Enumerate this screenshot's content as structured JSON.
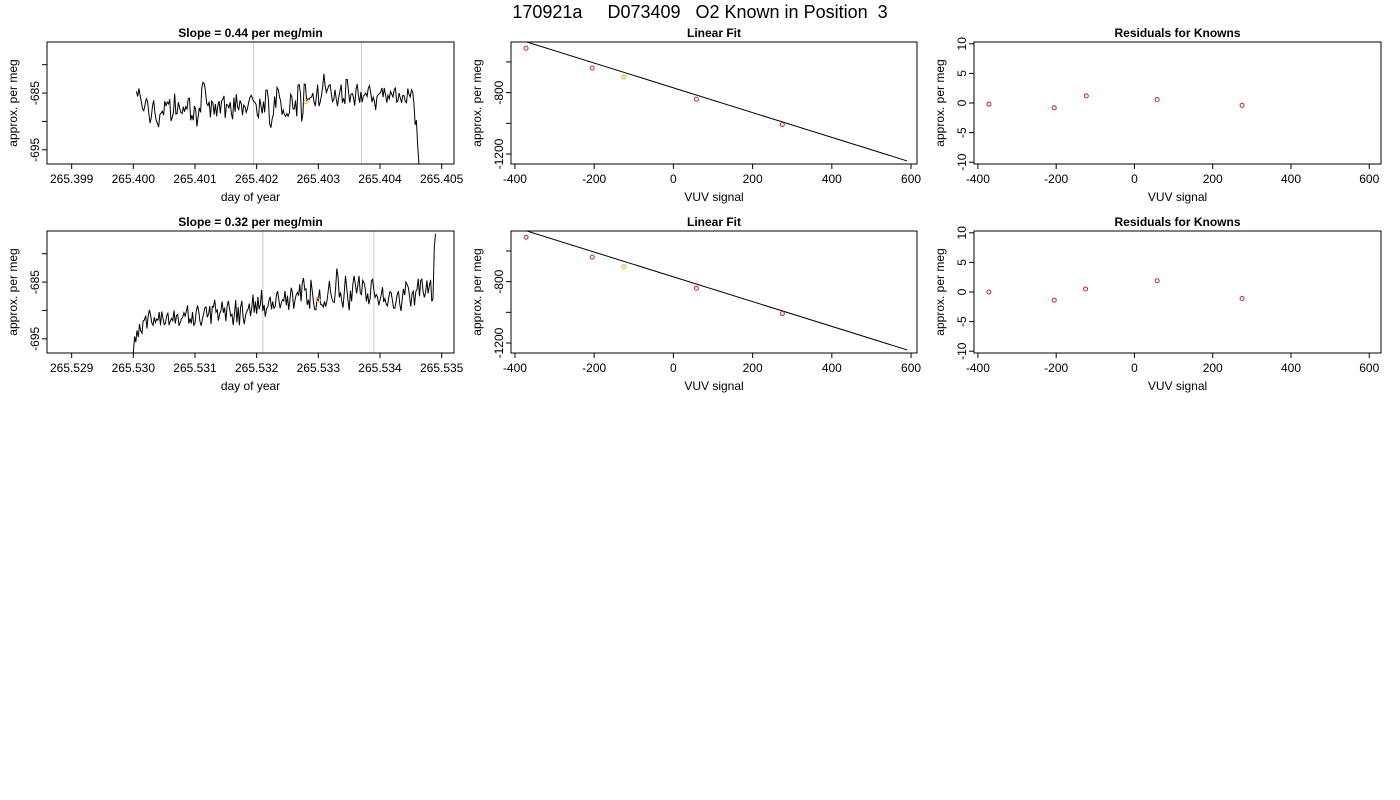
{
  "figure": {
    "title": "170921a     D073409   O2 Known in Position  3"
  },
  "chart_data": [
    {
      "panel": "time-series-row1",
      "type": "line",
      "title": "Slope =  0.44  per meg/min",
      "xlabel": "day of year",
      "ylabel": "approx. per meg",
      "xlim": [
        265.3986,
        265.4052
      ],
      "ylim": [
        -697.5,
        -676.0
      ],
      "xticks": [
        265.399,
        265.4,
        265.401,
        265.402,
        265.403,
        265.404,
        265.405
      ],
      "yticks": [
        -695,
        -685
      ],
      "ytick_labels": [
        "-695",
        "-685"
      ],
      "extra_ytick_marks": [
        -680,
        -690
      ],
      "tick_decimals": 3,
      "vlines": [
        265.40195,
        265.4037
      ],
      "line_color": "#000000",
      "vline_color": "#cccccc",
      "series": [
        {
          "values_start": 265.40005,
          "values_step": 2e-05,
          "values": [
            -684.7,
            -685.6,
            -684.2,
            -685.4,
            -686.6,
            -687.8,
            -688.1,
            -687.0,
            -686.0,
            -686.4,
            -688.5,
            -690.3,
            -689.4,
            -687.3,
            -686.3,
            -688.4,
            -689.8,
            -690.3,
            -691.0,
            -688.8,
            -688.5,
            -688.2,
            -688.9,
            -686.4,
            -687.2,
            -686.6,
            -686.9,
            -686.1,
            -689.9,
            -689.3,
            -688.5,
            -685.1,
            -688.7,
            -688.6,
            -686.6,
            -687.6,
            -688.4,
            -688.6,
            -687.4,
            -688.3,
            -687.4,
            -687.8,
            -686.0,
            -685.9,
            -689.8,
            -688.9,
            -689.8,
            -687.3,
            -687.8,
            -690.9,
            -689.2,
            -687.6,
            -688.4,
            -684.1,
            -683.1,
            -683.4,
            -684.7,
            -686.8,
            -687.2,
            -686.5,
            -689.3,
            -686.4,
            -686.7,
            -688.8,
            -686.9,
            -689.1,
            -687.3,
            -686.4,
            -688.6,
            -686.4,
            -686.1,
            -685.5,
            -689.4,
            -687.0,
            -687.1,
            -687.6,
            -686.6,
            -688.6,
            -689.6,
            -685.8,
            -688.3,
            -685.2,
            -687.5,
            -687.9,
            -686.3,
            -686.9,
            -688.9,
            -687.1,
            -687.4,
            -688.4,
            -687.8,
            -686.6,
            -685.8,
            -685.4,
            -685.9,
            -686.5,
            -686.6,
            -687.0,
            -688.9,
            -689.3,
            -686.0,
            -687.3,
            -688.6,
            -686.5,
            -688.4,
            -684.5,
            -684.5,
            -686.1,
            -690.4,
            -691.1,
            -689.6,
            -688.8,
            -685.6,
            -687.6,
            -684.0,
            -684.4,
            -685.7,
            -686.4,
            -688.8,
            -688.0,
            -688.8,
            -689.1,
            -688.6,
            -689.1,
            -688.5,
            -685.2,
            -685.6,
            -687.8,
            -687.8,
            -686.3,
            -689.1,
            -683.6,
            -683.5,
            -685.1,
            -690.0,
            -688.7,
            -683.4,
            -683.5,
            -686.3,
            -686.0,
            -686.1,
            -685.8,
            -685.7,
            -685.0,
            -686.5,
            -687.3,
            -685.4,
            -683.5,
            -687.3,
            -686.6,
            -685.5,
            -683.9,
            -681.6,
            -683.7,
            -684.9,
            -684.3,
            -683.7,
            -683.5,
            -685.1,
            -686.5,
            -686.1,
            -684.4,
            -686.0,
            -687.3,
            -685.8,
            -684.7,
            -683.5,
            -686.7,
            -685.9,
            -686.9,
            -682.6,
            -682.6,
            -684.9,
            -686.7,
            -685.2,
            -685.1,
            -685.8,
            -687.2,
            -684.4,
            -683.4,
            -685.4,
            -686.7,
            -684.8,
            -686.6,
            -685.5,
            -685.3,
            -685.0,
            -685.6,
            -684.1,
            -683.7,
            -685.0,
            -686.6,
            -685.7,
            -686.5,
            -688.0,
            -685.7,
            -685.3,
            -685.1,
            -684.9,
            -684.1,
            -685.7,
            -684.1,
            -685.4,
            -686.7,
            -685.4,
            -686.0,
            -684.7,
            -685.2,
            -685.7,
            -684.5,
            -684.0,
            -686.6,
            -686.4,
            -685.0,
            -685.9,
            -686.7,
            -685.4,
            -685.5,
            -686.5,
            -686.7,
            -684.2,
            -685.2,
            -685.7,
            -684.4,
            -684.8,
            -686.8,
            -690.6,
            -689.8,
            -693.9,
            -697.5
          ]
        }
      ],
      "markers": [
        {
          "x": 265.4028,
          "y": -686.5,
          "color": "#f5a623"
        }
      ]
    },
    {
      "panel": "linear-fit-row1",
      "type": "scatter",
      "title": "Linear Fit",
      "xlabel": "VUV signal",
      "ylabel": "approx. per meg",
      "xlim": [
        -410,
        615
      ],
      "ylim": [
        -1265,
        -470
      ],
      "xticks": [
        -400,
        -200,
        0,
        200,
        400,
        600
      ],
      "yticks": [
        -1200,
        -800
      ],
      "ytick_labels": [
        "-1200",
        "-800"
      ],
      "extra_ytick_marks": [
        -1000,
        -600
      ],
      "tick_decimals": 0,
      "fit_line": {
        "x1": -380,
        "y1": -462,
        "x2": 590,
        "y2": -1245,
        "color": "#000000"
      },
      "series": [
        {
          "points": [
            [
              -372,
              -511
            ],
            [
              -205,
              -640
            ],
            [
              -125,
              -698
            ],
            [
              58,
              -843
            ],
            [
              275,
              -1008
            ]
          ],
          "colors": [
            "#cc2222",
            "#cc2222",
            "#f5a623",
            "#cc2222",
            "#cc2222"
          ]
        }
      ]
    },
    {
      "panel": "residuals-row1",
      "type": "scatter",
      "title": "Residuals for Knowns",
      "xlabel": "VUV signal",
      "ylabel": "approx. per meg",
      "xlim": [
        -410,
        630
      ],
      "ylim": [
        -10.3,
        10.3
      ],
      "xticks": [
        -400,
        -200,
        0,
        200,
        400,
        600
      ],
      "yticks": [
        -10,
        -5,
        0,
        5,
        10
      ],
      "ytick_labels": [
        "-10",
        "-5",
        "0",
        "5",
        "10"
      ],
      "extra_ytick_marks": [],
      "tick_decimals": 0,
      "series": [
        {
          "points": [
            [
              -372,
              -0.2
            ],
            [
              -205,
              -0.8
            ],
            [
              -123,
              1.2
            ],
            [
              58,
              0.6
            ],
            [
              275,
              -0.4
            ]
          ],
          "colors": [
            "#cc2222",
            "#cc2222",
            "#cc2222",
            "#cc2222",
            "#cc2222"
          ]
        }
      ]
    },
    {
      "panel": "time-series-row2",
      "type": "line",
      "title": "Slope =  0.32  per meg/min",
      "xlabel": "day of year",
      "ylabel": "approx. per meg",
      "xlim": [
        265.5286,
        265.5352
      ],
      "ylim": [
        -697.5,
        -676.0
      ],
      "xticks": [
        265.529,
        265.53,
        265.531,
        265.532,
        265.533,
        265.534,
        265.535
      ],
      "yticks": [
        -695,
        -685
      ],
      "ytick_labels": [
        "-695",
        "-685"
      ],
      "extra_ytick_marks": [
        -680,
        -690
      ],
      "tick_decimals": 3,
      "vlines": [
        265.5321,
        265.5339
      ],
      "line_color": "#000000",
      "vline_color": "#cccccc",
      "series": [
        {
          "values_start": 265.53,
          "values_step": 2e-05,
          "values": [
            -697.5,
            -694.6,
            -695.6,
            -693.5,
            -694.7,
            -692.4,
            -693.6,
            -694.0,
            -691.8,
            -691.7,
            -690.9,
            -693.2,
            -691.1,
            -689.9,
            -690.8,
            -692.2,
            -692.6,
            -691.2,
            -692.1,
            -691.5,
            -691.7,
            -690.3,
            -692.6,
            -690.2,
            -691.3,
            -692.5,
            -692.3,
            -691.0,
            -690.4,
            -692.6,
            -691.9,
            -691.4,
            -691.8,
            -690.0,
            -692.3,
            -690.9,
            -690.7,
            -692.7,
            -692.1,
            -691.5,
            -691.2,
            -690.4,
            -691.0,
            -690.1,
            -689.1,
            -692.3,
            -691.4,
            -692.3,
            -690.3,
            -692.6,
            -692.3,
            -690.2,
            -689.1,
            -690.1,
            -691.9,
            -692.7,
            -691.5,
            -690.6,
            -689.5,
            -689.4,
            -691.2,
            -690.6,
            -689.2,
            -692.4,
            -689.3,
            -689.4,
            -688.1,
            -690.3,
            -689.9,
            -691.8,
            -690.6,
            -690.1,
            -688.4,
            -690.4,
            -689.5,
            -691.9,
            -689.3,
            -688.3,
            -689.6,
            -691.0,
            -690.7,
            -692.6,
            -690.5,
            -688.2,
            -692.1,
            -689.4,
            -692.6,
            -689.4,
            -688.3,
            -691.2,
            -692.4,
            -690.8,
            -690.2,
            -689.8,
            -688.8,
            -691.0,
            -689.7,
            -687.2,
            -690.4,
            -688.4,
            -690.6,
            -687.6,
            -689.8,
            -688.9,
            -686.4,
            -690.1,
            -689.0,
            -691.1,
            -689.7,
            -689.4,
            -688.2,
            -687.6,
            -689.8,
            -688.4,
            -689.6,
            -689.3,
            -687.3,
            -686.6,
            -688.2,
            -689.6,
            -688.7,
            -688.1,
            -688.3,
            -686.6,
            -689.1,
            -687.4,
            -689.9,
            -688.0,
            -686.0,
            -686.8,
            -689.7,
            -688.3,
            -687.3,
            -686.8,
            -687.4,
            -685.4,
            -688.4,
            -685.1,
            -684.3,
            -686.4,
            -686.2,
            -689.0,
            -688.1,
            -689.7,
            -684.6,
            -686.5,
            -688.4,
            -689.8,
            -689.9,
            -687.8,
            -688.2,
            -686.3,
            -689.0,
            -689.0,
            -689.4,
            -688.4,
            -689.3,
            -688.3,
            -686.6,
            -684.8,
            -686.9,
            -687.9,
            -688.5,
            -688.6,
            -686.1,
            -682.6,
            -684.2,
            -687.7,
            -686.8,
            -688.4,
            -689.5,
            -687.0,
            -683.9,
            -686.0,
            -688.1,
            -690.0,
            -686.5,
            -688.4,
            -685.3,
            -683.9,
            -685.3,
            -687.0,
            -685.6,
            -683.9,
            -687.0,
            -687.2,
            -684.7,
            -685.1,
            -686.1,
            -688.4,
            -687.0,
            -688.9,
            -687.9,
            -684.8,
            -684.5,
            -686.3,
            -687.7,
            -687.2,
            -687.6,
            -689.1,
            -688.2,
            -687.3,
            -685.9,
            -688.5,
            -687.9,
            -688.9,
            -689.2,
            -687.9,
            -686.7,
            -686.8,
            -688.1,
            -689.6,
            -689.6,
            -688.5,
            -687.1,
            -686.6,
            -688.8,
            -690.1,
            -688.0,
            -686.2,
            -687.3,
            -685.0,
            -685.4,
            -686.0,
            -687.6,
            -689.3,
            -687.0,
            -686.6,
            -689.1,
            -686.7,
            -686.3,
            -684.4,
            -687.5,
            -684.7,
            -684.5,
            -686.8,
            -687.7,
            -686.8,
            -684.7,
            -687.0,
            -685.7,
            -684.6,
            -688.4,
            -687.9,
            -678.9,
            -676.5
          ]
        }
      ],
      "markers": [
        {
          "x": 265.533,
          "y": -688.2,
          "color": "#f5a623"
        }
      ]
    },
    {
      "panel": "linear-fit-row2",
      "type": "scatter",
      "title": "Linear Fit",
      "xlabel": "VUV signal",
      "ylabel": "approx. per meg",
      "xlim": [
        -410,
        615
      ],
      "ylim": [
        -1265,
        -470
      ],
      "xticks": [
        -400,
        -200,
        0,
        200,
        400,
        600
      ],
      "yticks": [
        -1200,
        -800
      ],
      "ytick_labels": [
        "-1200",
        "-800"
      ],
      "extra_ytick_marks": [
        -1000,
        -600
      ],
      "tick_decimals": 0,
      "fit_line": {
        "x1": -380,
        "y1": -462,
        "x2": 590,
        "y2": -1245,
        "color": "#000000"
      },
      "series": [
        {
          "points": [
            [
              -372,
              -511
            ],
            [
              -205,
              -640
            ],
            [
              -125,
              -703
            ],
            [
              58,
              -843
            ],
            [
              275,
              -1008
            ]
          ],
          "colors": [
            "#cc2222",
            "#cc2222",
            "#f5a623",
            "#cc2222",
            "#cc2222"
          ]
        }
      ]
    },
    {
      "panel": "residuals-row2",
      "type": "scatter",
      "title": "Residuals for Knowns",
      "xlabel": "VUV signal",
      "ylabel": "approx. per meg",
      "xlim": [
        -410,
        630
      ],
      "ylim": [
        -10.3,
        10.3
      ],
      "xticks": [
        -400,
        -200,
        0,
        200,
        400,
        600
      ],
      "yticks": [
        -10,
        -5,
        0,
        5,
        10
      ],
      "ytick_labels": [
        "-10",
        "-5",
        "0",
        "5",
        "10"
      ],
      "extra_ytick_marks": [],
      "tick_decimals": 0,
      "series": [
        {
          "points": [
            [
              -372,
              0.0
            ],
            [
              -205,
              -1.4
            ],
            [
              -125,
              0.5
            ],
            [
              58,
              1.9
            ],
            [
              275,
              -1.1
            ]
          ],
          "colors": [
            "#cc2222",
            "#cc2222",
            "#cc2222",
            "#cc2222",
            "#cc2222"
          ]
        }
      ]
    }
  ]
}
